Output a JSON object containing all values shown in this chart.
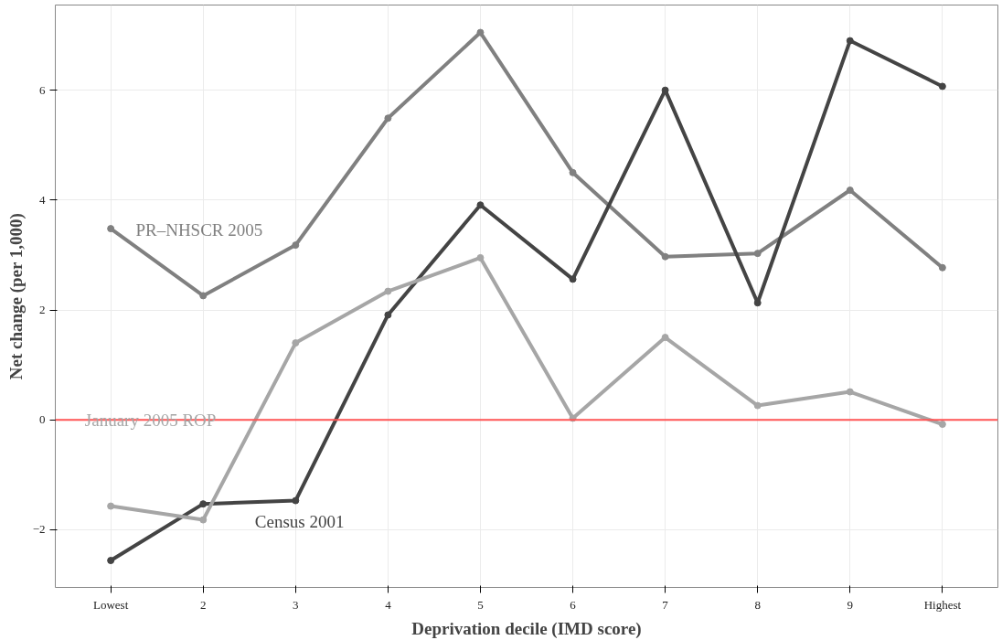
{
  "chart_data": {
    "type": "line",
    "xlabel": "Deprivation decile (IMD score)",
    "ylabel": "Net change (per 1,000)",
    "categories": [
      "Lowest",
      "2",
      "3",
      "4",
      "5",
      "6",
      "7",
      "8",
      "9",
      "Highest"
    ],
    "series": [
      {
        "name": "PR–NHSCR 2005",
        "color": "#808080",
        "values": [
          3.48,
          2.26,
          3.18,
          5.49,
          7.05,
          4.5,
          2.97,
          3.03,
          4.18,
          2.77
        ]
      },
      {
        "name": "Census 2001",
        "color": "#444444",
        "values": [
          -2.56,
          -1.53,
          -1.47,
          1.91,
          3.91,
          2.56,
          6.0,
          2.13,
          6.9,
          6.07
        ]
      },
      {
        "name": "January 2005 ROP",
        "color": "#a6a6a6",
        "values": [
          -1.57,
          -1.82,
          1.4,
          2.34,
          2.95,
          0.03,
          1.5,
          0.26,
          0.51,
          -0.08
        ]
      }
    ],
    "ylim": [
      -3.05,
      7.55
    ],
    "yticks": [
      -2,
      0,
      2,
      4,
      6
    ],
    "grid": true,
    "marker": "circle",
    "line_style": "solid",
    "ref_lines": [
      {
        "axis": "y",
        "value": 0,
        "label": null,
        "color": "#ff5555"
      }
    ]
  }
}
